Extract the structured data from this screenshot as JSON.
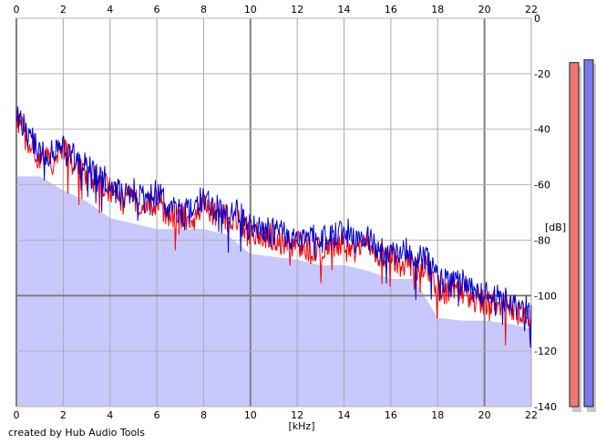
{
  "footer": {
    "credit": "created by Hub Audio Tools"
  },
  "chart_data": {
    "type": "line",
    "title": "",
    "xlabel": "[kHz]",
    "ylabel": "[dB]",
    "xlim": [
      0,
      22
    ],
    "ylim": [
      -140,
      0
    ],
    "x_ticks": [
      "0",
      "2",
      "4",
      "6",
      "8",
      "10",
      "12",
      "14",
      "16",
      "18",
      "20",
      "22"
    ],
    "y_ticks": [
      "0",
      "-20",
      "-40",
      "-60",
      "-80",
      "-100",
      "-120",
      "-140"
    ],
    "grid": true,
    "legend": "none",
    "series": [
      {
        "color": "#ff0000",
        "x": [
          0,
          0.5,
          1,
          1.5,
          2,
          2.5,
          3,
          3.5,
          4,
          4.5,
          5,
          5.5,
          6,
          6.5,
          7,
          7.5,
          8,
          8.5,
          9,
          9.5,
          10,
          10.5,
          11,
          11.5,
          12,
          12.5,
          13,
          13.5,
          14,
          14.5,
          15,
          15.5,
          16,
          16.5,
          17,
          17.5,
          18,
          18.5,
          19,
          19.5,
          20,
          20.5,
          21,
          21.5,
          22
        ],
        "values": [
          -36,
          -45,
          -50,
          -52,
          -47,
          -53,
          -57,
          -58,
          -62,
          -66,
          -65,
          -67,
          -66,
          -71,
          -72,
          -71,
          -67,
          -71,
          -72,
          -73,
          -78,
          -78,
          -79,
          -81,
          -81,
          -83,
          -83,
          -82,
          -80,
          -84,
          -82,
          -85,
          -86,
          -88,
          -90,
          -90,
          -97,
          -99,
          -98,
          -100,
          -102,
          -103,
          -104,
          -106,
          -108
        ]
      },
      {
        "color": "#0000cc",
        "x": [
          0,
          0.5,
          1,
          1.5,
          2,
          2.5,
          3,
          3.5,
          4,
          4.5,
          5,
          5.5,
          6,
          6.5,
          7,
          7.5,
          8,
          8.5,
          9,
          9.5,
          10,
          10.5,
          11,
          11.5,
          12,
          12.5,
          13,
          13.5,
          14,
          14.5,
          15,
          15.5,
          16,
          16.5,
          17,
          17.5,
          18,
          18.5,
          19,
          19.5,
          20,
          20.5,
          21,
          21.5,
          22
        ],
        "values": [
          -33,
          -42,
          -48,
          -49,
          -45,
          -50,
          -54,
          -56,
          -60,
          -64,
          -62,
          -64,
          -63,
          -68,
          -70,
          -67,
          -64,
          -68,
          -70,
          -70,
          -76,
          -75,
          -77,
          -78,
          -79,
          -79,
          -80,
          -79,
          -74,
          -80,
          -79,
          -83,
          -85,
          -83,
          -86,
          -87,
          -92,
          -96,
          -95,
          -98,
          -100,
          -100,
          -102,
          -104,
          -105
        ]
      },
      {
        "color": "#c8c8ff",
        "x": [
          0,
          1,
          2,
          3,
          4,
          5,
          6,
          7,
          8,
          9,
          10,
          11,
          12,
          13,
          14,
          15,
          16,
          17,
          18,
          19,
          20,
          21,
          22
        ],
        "values": [
          -57,
          -57,
          -62,
          -66,
          -72,
          -74,
          -76,
          -76,
          -76,
          -78,
          -85,
          -86,
          -87,
          -89,
          -89,
          -91,
          -94,
          -94,
          -108,
          -109,
          -109,
          -110,
          -112
        ]
      }
    ],
    "meters": [
      {
        "channel": "left",
        "color": "#ee7777",
        "value": -16
      },
      {
        "channel": "right",
        "color": "#7777ee",
        "value": -15
      }
    ]
  }
}
